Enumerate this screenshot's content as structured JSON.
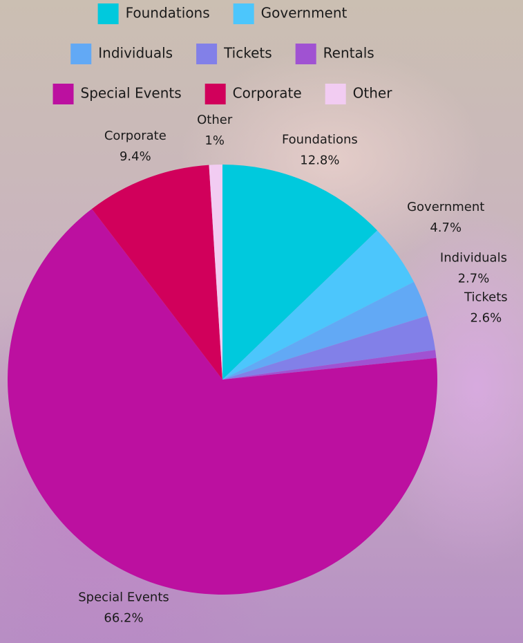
{
  "chart_data": {
    "type": "pie",
    "categories": [
      "Foundations",
      "Government",
      "Individuals",
      "Tickets",
      "Rentals",
      "Special Events",
      "Corporate",
      "Other"
    ],
    "values": [
      12.8,
      4.7,
      2.7,
      2.6,
      0.6,
      66.2,
      9.4,
      1
    ],
    "value_labels": [
      "12.8%",
      "4.7%",
      "2.7%",
      "2.6%",
      null,
      "66.2%",
      "9.4%",
      "1%"
    ],
    "colors": [
      "#00c9dd",
      "#4cc6fc",
      "#62a9f5",
      "#8280e8",
      "#a052d2",
      "#bc10a0",
      "#d1005b",
      "#f2ccf2"
    ]
  }
}
